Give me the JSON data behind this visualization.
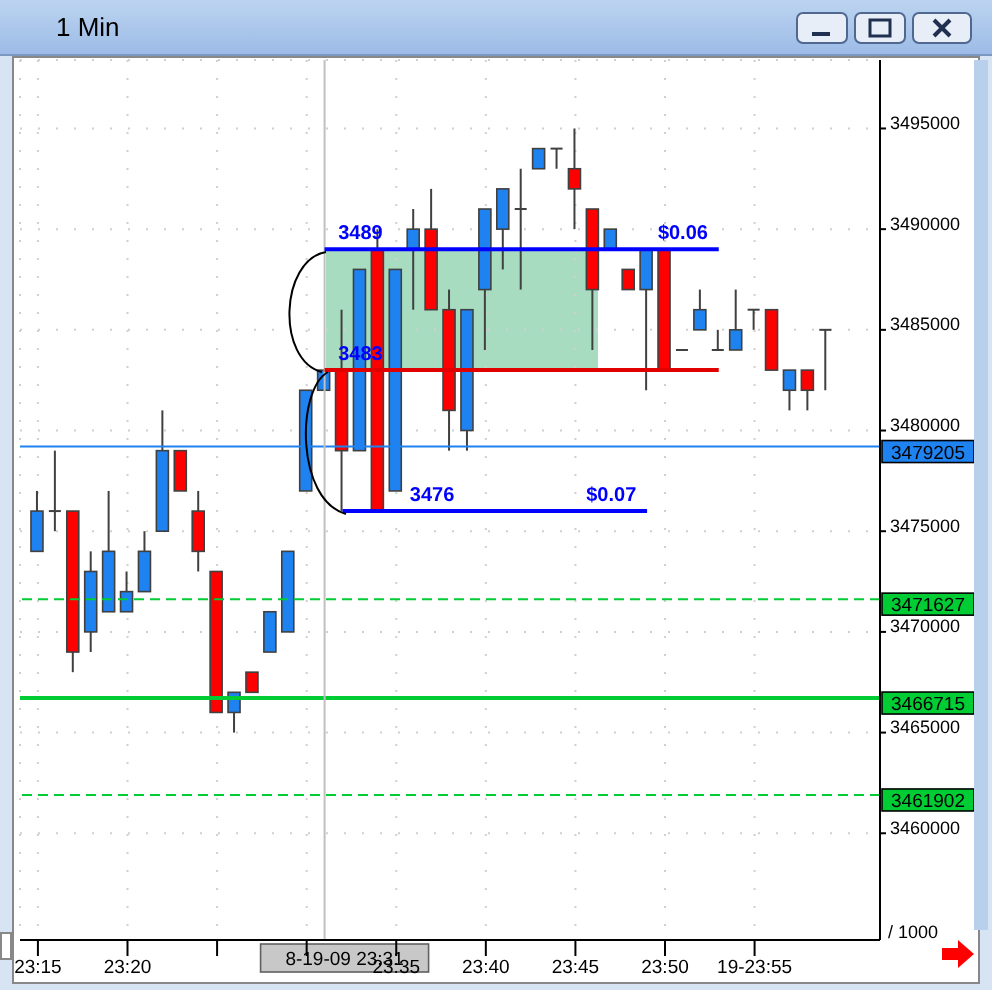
{
  "chart_data": {
    "type": "candlestick",
    "title": "1 Min",
    "x": [
      "--08-19T23:15",
      "--08-19T23:16",
      "--08-19T23:17",
      "--08-19T23:18",
      "--08-19T23:19",
      "--08-19T23:20",
      "--08-19T23:21",
      "--08-19T23:22",
      "--08-19T23:23",
      "--08-19T23:24",
      "--08-19T23:25",
      "--08-19T23:26",
      "--08-19T23:27",
      "--08-19T23:28",
      "--08-19T23:29",
      "--08-19T23:30",
      "--08-19T23:31",
      "--08-19T23:32",
      "--08-19T23:33",
      "--08-19T23:34",
      "--08-19T23:35",
      "--08-19T23:36",
      "--08-19T23:37",
      "--08-19T23:38",
      "--08-19T23:39",
      "--08-19T23:40",
      "--08-19T23:41",
      "--08-19T23:42",
      "--08-19T23:43",
      "--08-19T23:44",
      "--08-19T23:45",
      "--08-19T23:46",
      "--08-19T23:47",
      "--08-19T23:48",
      "--08-19T23:49",
      "--08-19T23:50",
      "--08-19T23:51",
      "--08-19T23:52",
      "--08-19T23:53",
      "--08-19T23:54",
      "--08-19T23:55",
      "--08-19T23:56",
      "--08-19T23:57",
      "--08-19T23:58",
      "--08-19T23:59"
    ],
    "ohlc": [
      [
        3474000,
        3477000,
        3474000,
        3476000
      ],
      [
        3476000,
        3479000,
        3475000,
        3476000
      ],
      [
        3476000,
        3476000,
        3468000,
        3469000
      ],
      [
        3470000,
        3474000,
        3469000,
        3473000
      ],
      [
        3471000,
        3477000,
        3471000,
        3474000
      ],
      [
        3471000,
        3473000,
        3471000,
        3472000
      ],
      [
        3472000,
        3475000,
        3472000,
        3474000
      ],
      [
        3475000,
        3481000,
        3475000,
        3479000
      ],
      [
        3479000,
        3479000,
        3477000,
        3477000
      ],
      [
        3476000,
        3477000,
        3473000,
        3474000
      ],
      [
        3473000,
        3473000,
        3466000,
        3466000
      ],
      [
        3466000,
        3467000,
        3465000,
        3467000
      ],
      [
        3468000,
        3468000,
        3467000,
        3467000
      ],
      [
        3469000,
        3471000,
        3469000,
        3471000
      ],
      [
        3470000,
        3474000,
        3470000,
        3474000
      ],
      [
        3477000,
        3482000,
        3477000,
        3482000
      ],
      [
        3482000,
        3483000,
        3482000,
        3483000
      ],
      [
        3483000,
        3486000,
        3476000,
        3479000
      ],
      [
        3479000,
        3488000,
        3479000,
        3488000
      ],
      [
        3489000,
        3490000,
        3476000,
        3476000
      ],
      [
        3477000,
        3488000,
        3477000,
        3488000
      ],
      [
        3489000,
        3491000,
        3486000,
        3490000
      ],
      [
        3490000,
        3492000,
        3486000,
        3486000
      ],
      [
        3486000,
        3487000,
        3479000,
        3481000
      ],
      [
        3480000,
        3486000,
        3479000,
        3486000
      ],
      [
        3487000,
        3491000,
        3484000,
        3491000
      ],
      [
        3490000,
        3492000,
        3488000,
        3492000
      ],
      [
        3491000,
        3493000,
        3487000,
        3491000
      ],
      [
        3493000,
        3494000,
        3493000,
        3494000
      ],
      [
        3494000,
        3494000,
        3493000,
        3494000
      ],
      [
        3493000,
        3495000,
        3490000,
        3492000
      ],
      [
        3491000,
        3491000,
        3484000,
        3487000
      ],
      [
        3489000,
        3490000,
        3489000,
        3490000
      ],
      [
        3488000,
        3488000,
        3487000,
        3487000
      ],
      [
        3487000,
        3489000,
        3482000,
        3489000
      ],
      [
        3489000,
        3489000,
        3483000,
        3483000
      ],
      [
        3484000,
        3484000,
        3484000,
        3484000
      ],
      [
        3485000,
        3487000,
        3485000,
        3486000
      ],
      [
        3484000,
        3485000,
        3484000,
        3484000
      ],
      [
        3484000,
        3487000,
        3484000,
        3485000
      ],
      [
        3486000,
        3486000,
        3485000,
        3486000
      ],
      [
        3486000,
        3486000,
        3483000,
        3483000
      ],
      [
        3482000,
        3483000,
        3481000,
        3483000
      ],
      [
        3483000,
        3483000,
        3481000,
        3482000
      ],
      [
        3485000,
        3485000,
        3482000,
        3485000
      ]
    ],
    "colors": [
      "#1e82f0",
      "#404040",
      "#ff0000",
      "#1e82f0",
      "#1e82f0",
      "#1e82f0",
      "#1e82f0",
      "#1e82f0",
      "#ff0000",
      "#ff0000",
      "#ff0000",
      "#1e82f0",
      "#ff0000",
      "#1e82f0",
      "#1e82f0",
      "#1e82f0",
      "#1e82f0",
      "#ff0000",
      "#1e82f0",
      "#ff0000",
      "#1e82f0",
      "#1e82f0",
      "#ff0000",
      "#ff0000",
      "#1e82f0",
      "#1e82f0",
      "#1e82f0",
      "#404040",
      "#1e82f0",
      "#404040",
      "#ff0000",
      "#ff0000",
      "#1e82f0",
      "#ff0000",
      "#1e82f0",
      "#ff0000",
      "#404040",
      "#1e82f0",
      "#404040",
      "#1e82f0",
      "#404040",
      "#ff0000",
      "#1e82f0",
      "#ff0000",
      "#404040"
    ],
    "series": [
      {
        "type": "line",
        "color": "#0000ff",
        "x": [
          "--08-19T23:31",
          "--08-19T23:53"
        ],
        "values": [
          3489000,
          3489000
        ]
      },
      {
        "type": "line",
        "color": "#e00000",
        "x": [
          "--08-19T23:31",
          "--08-19T23:53"
        ],
        "values": [
          3483000,
          3483000
        ]
      },
      {
        "type": "line",
        "color": "#0000ff",
        "x": [
          "--08-19T23:32",
          "--08-19T23:49"
        ],
        "values": [
          3476000,
          3476000
        ]
      }
    ],
    "annotations": [
      {
        "text": "3489",
        "x": "--08-19T23:33",
        "y": 3489000
      },
      {
        "text": "3483",
        "x": "--08-19T23:33",
        "y": 3483000
      },
      {
        "text": "3476",
        "x": "--08-19T23:37",
        "y": 3476000
      },
      {
        "text": "$0.06",
        "x": "--08-19T23:51",
        "y": 3489000
      },
      {
        "text": "$0.07",
        "x": "--08-19T23:47",
        "y": 3476000
      }
    ],
    "ref_lines": [
      {
        "axis": "y",
        "value": 3479205,
        "label": "3479205",
        "color": "#1e82f0",
        "line_style": "solid"
      },
      {
        "axis": "y",
        "value": 3471627,
        "label": "3471627",
        "color": "#00cc33",
        "line_style": "dashed"
      },
      {
        "axis": "y",
        "value": 3466715,
        "label": "3466715",
        "color": "#00cc33",
        "line_style": "solid"
      },
      {
        "axis": "y",
        "value": 3461902,
        "label": "3461902",
        "color": "#00cc33",
        "line_style": "dashed"
      },
      {
        "axis": "x",
        "value": "--08-19T23:31",
        "label": "8-19-09 23:31",
        "color": "#c0c0c0",
        "line_style": "solid"
      }
    ],
    "xlim": [
      "--08-19T23:14",
      "--08-20T00:02"
    ],
    "xticks": [
      {
        "value": "--08-19T23:15",
        "label": "23:15"
      },
      {
        "value": "--08-19T23:20",
        "label": "23:20"
      },
      {
        "value": "--08-19T23:25",
        "label": null
      },
      {
        "value": "--08-19T23:30",
        "label": null
      },
      {
        "value": "--08-19T23:35",
        "label": "23:35"
      },
      {
        "value": "--08-19T23:40",
        "label": "23:40"
      },
      {
        "value": "--08-19T23:45",
        "label": "23:45"
      },
      {
        "value": "--08-19T23:50",
        "label": "23:50"
      },
      {
        "value": "--08-19T23:55",
        "label": "19-23:55"
      }
    ],
    "ylim": [
      3454700,
      3498400
    ],
    "ylabel": "/ 1000",
    "yticks": [
      3460000,
      3465000,
      3470000,
      3475000,
      3480000,
      3485000,
      3490000,
      3495000
    ],
    "grid": true,
    "legend": false
  }
}
